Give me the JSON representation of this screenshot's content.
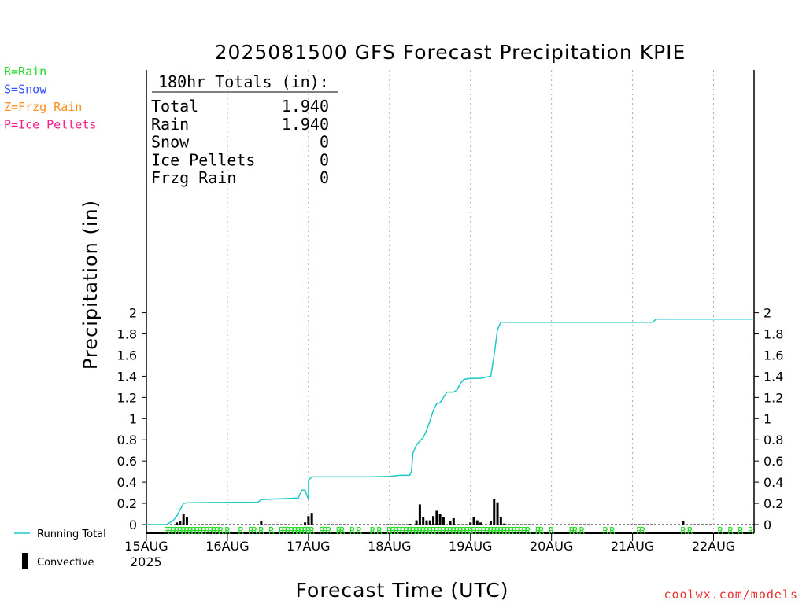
{
  "chart_data": {
    "type": "bar",
    "title": "2025081500 GFS Forecast Precipitation KPIE",
    "xlabel": "Forecast Time (UTC)",
    "ylabel": "Precipitation (in)",
    "ylim": [
      0,
      2.1
    ],
    "yticks": [
      "0",
      "0.2",
      "0.4",
      "0.6",
      "0.8",
      "1",
      "1.2",
      "1.4",
      "1.6",
      "1.8",
      "2"
    ],
    "x_start_label": "15AUG",
    "x_year_label": "2025",
    "x_tick_labels": [
      "15AUG",
      "16AUG",
      "17AUG",
      "18AUG",
      "19AUG",
      "20AUG",
      "21AUG",
      "22AUG"
    ],
    "x_range_hours": [
      0,
      180
    ],
    "grid": "vertical dotted lines at each day",
    "legend_types": [
      {
        "label": "R=Rain",
        "color": "#22dd22"
      },
      {
        "label": "S=Snow",
        "color": "#3355ff"
      },
      {
        "label": "Z=Frzg Rain",
        "color": "#ff8c1a"
      },
      {
        "label": "P=Ice Pellets",
        "color": "#ff1a8c"
      }
    ],
    "legend_series": [
      {
        "label": "Running Total",
        "color": "#1fc8c8"
      },
      {
        "label": "Convective",
        "color": "#000000"
      }
    ],
    "totals_box": {
      "header": "180hr Totals (in):",
      "rows": [
        {
          "label": "Total",
          "value": "1.940"
        },
        {
          "label": "Rain",
          "value": "1.940"
        },
        {
          "label": "Snow",
          "value": "0"
        },
        {
          "label": "Ice Pellets",
          "value": "0"
        },
        {
          "label": "Frzg Rain",
          "value": "0"
        }
      ]
    },
    "running_total": {
      "hours": [
        0,
        6,
        7,
        8,
        9,
        10,
        11,
        12,
        24,
        33,
        34,
        48,
        45,
        46,
        47,
        48,
        49,
        50,
        66,
        72,
        75,
        78,
        78.5,
        79,
        80,
        81,
        82,
        83,
        84,
        85,
        86,
        87,
        88,
        89,
        90,
        91,
        92,
        93,
        94,
        96,
        97,
        98,
        99,
        102,
        103,
        104,
        105,
        106,
        107,
        108,
        150,
        151,
        180
      ],
      "values": [
        0,
        0,
        0.02,
        0.04,
        0.08,
        0.14,
        0.2,
        0.205,
        0.21,
        0.21,
        0.235,
        0.235,
        0.25,
        0.325,
        0.325,
        0.42,
        0.45,
        0.45,
        0.45,
        0.455,
        0.465,
        0.465,
        0.5,
        0.68,
        0.75,
        0.79,
        0.82,
        0.89,
        0.98,
        1.08,
        1.14,
        1.15,
        1.2,
        1.25,
        1.25,
        1.25,
        1.27,
        1.33,
        1.37,
        1.38,
        1.38,
        1.38,
        1.38,
        1.4,
        1.6,
        1.84,
        1.91,
        1.91,
        1.91,
        1.91,
        1.91,
        1.94,
        1.94
      ]
    },
    "convective": {
      "hours": [
        9,
        10,
        11,
        12,
        34,
        47,
        48,
        49,
        78,
        80,
        81,
        82,
        83,
        84,
        85,
        86,
        87,
        88,
        90,
        91,
        96,
        97,
        98,
        99,
        102,
        103,
        104,
        105,
        106,
        159
      ],
      "values": [
        0.02,
        0.03,
        0.1,
        0.07,
        0.03,
        0.02,
        0.08,
        0.11,
        0.005,
        0.04,
        0.19,
        0.07,
        0.04,
        0.04,
        0.08,
        0.13,
        0.1,
        0.07,
        0.03,
        0.06,
        0.02,
        0.07,
        0.04,
        0.02,
        0.03,
        0.24,
        0.21,
        0.07,
        0.01,
        0.03
      ]
    },
    "type_markers": {
      "label": "R",
      "hours": [
        6,
        7,
        8,
        9,
        10,
        11,
        12,
        13,
        14,
        15,
        16,
        17,
        18,
        19,
        20,
        21,
        22,
        24,
        28,
        31,
        32,
        34,
        37,
        40,
        41,
        42,
        43,
        44,
        45,
        46,
        47,
        48,
        49,
        52,
        53,
        54,
        57,
        58,
        61,
        63,
        67,
        69,
        72,
        73,
        74,
        75,
        76,
        77,
        78,
        79,
        80,
        81,
        82,
        83,
        84,
        85,
        86,
        87,
        88,
        89,
        90,
        91,
        92,
        93,
        94,
        95,
        96,
        97,
        98,
        99,
        100,
        101,
        102,
        103,
        104,
        105,
        106,
        107,
        108,
        109,
        110,
        111,
        112,
        113,
        116,
        117,
        120,
        126,
        127,
        129,
        136,
        138,
        146,
        147,
        159,
        161,
        170,
        173,
        176,
        179
      ]
    }
  },
  "footer": {
    "watermark": "coolwx.com/models"
  }
}
